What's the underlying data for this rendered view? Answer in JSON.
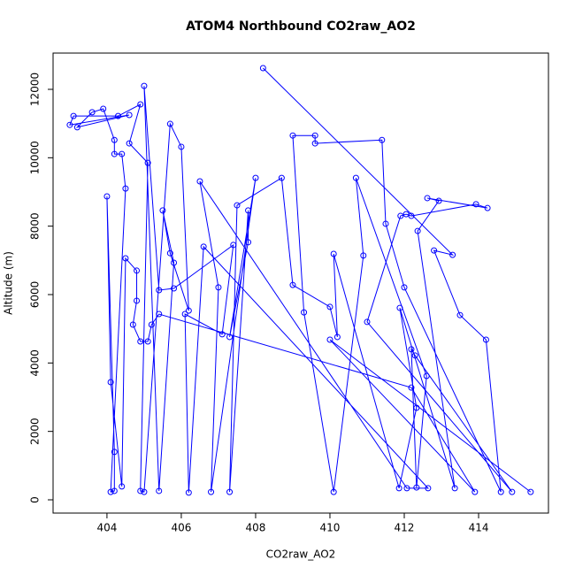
{
  "chart_data": {
    "type": "line",
    "title": "ATOM4 Northbound CO2raw_AO2",
    "x_label": "CO2raw_AO2",
    "y_label": "Altitude (m)",
    "x": [
      408.2,
      413.3,
      412.8,
      413.5,
      414.2,
      414.6,
      412.0,
      411.5,
      411.4,
      409.6,
      409.6,
      409.0,
      409.3,
      410.1,
      410.9,
      410.7,
      412.6,
      412.33,
      412.19,
      412.29,
      414.9,
      411.0,
      411.9,
      412.05,
      412.19,
      413.93,
      414.24,
      412.62,
      412.93,
      412.36,
      413.36,
      411.88,
      412.33,
      411.86,
      410.1,
      410.2,
      410.0,
      409.0,
      408.7,
      407.5,
      407.3,
      407.8,
      407.8,
      407.3,
      408.0,
      406.8,
      407.0,
      406.5,
      412.07,
      412.64,
      406.6,
      406.2,
      406.1,
      407.1,
      407.4,
      405.8,
      405.4,
      405.0,
      405.4,
      405.8,
      405.5,
      405.7,
      406.2,
      406.0,
      405.7,
      405.0,
      404.9,
      405.1,
      404.6,
      404.9,
      404.3,
      403.1,
      403.0,
      404.6,
      403.2,
      403.6,
      403.9,
      404.2,
      404.2,
      404.4,
      404.5,
      404.1,
      404.2,
      404.2,
      404.0,
      404.1,
      404.4,
      404.5,
      404.8,
      404.8,
      404.7,
      404.9,
      405.1,
      405.2,
      405.4,
      412.19,
      413.9,
      410.0,
      415.4
    ],
    "values": [
      12620,
      7160,
      7290,
      5400,
      4680,
      230,
      6210,
      8070,
      10520,
      10420,
      10650,
      10650,
      5480,
      230,
      7140,
      9410,
      3620,
      360,
      4400,
      4220,
      230,
      5200,
      8300,
      8350,
      8300,
      8640,
      8530,
      8820,
      8740,
      7860,
      340,
      5610,
      2690,
      340,
      7190,
      4760,
      5640,
      6280,
      9410,
      8610,
      230,
      8460,
      7530,
      4760,
      9410,
      230,
      6210,
      9310,
      340,
      340,
      7400,
      210,
      5430,
      4840,
      7450,
      6180,
      6130,
      12100,
      260,
      6930,
      8460,
      7210,
      5530,
      10320,
      10990,
      230,
      260,
      9850,
      10420,
      11560,
      11220,
      11220,
      10960,
      11250,
      10890,
      11330,
      11430,
      10520,
      10110,
      10110,
      9100,
      230,
      260,
      1400,
      8870,
      3440,
      390,
      7060,
      6700,
      5820,
      5120,
      4630,
      4630,
      5120,
      5430,
      3280,
      230,
      4680,
      230
    ],
    "color": "#0000ff",
    "markers": true,
    "xlim": [
      402.55,
      415.88
    ],
    "ylim": [
      -388,
      13060
    ],
    "xticks": [
      404,
      406,
      408,
      410,
      412,
      414
    ],
    "yticks": [
      0,
      2000,
      4000,
      6000,
      8000,
      10000,
      12000
    ]
  }
}
